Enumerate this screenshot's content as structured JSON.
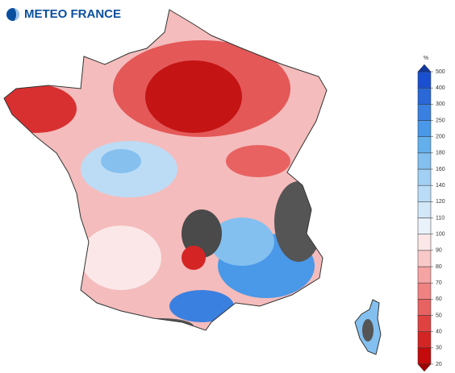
{
  "header": {
    "logo_text": "METEO FRANCE"
  },
  "legend": {
    "unit": "%",
    "ticks": [
      20,
      30,
      40,
      50,
      60,
      70,
      80,
      90,
      100,
      110,
      120,
      140,
      160,
      180,
      200,
      250,
      300,
      400,
      500
    ],
    "colors": [
      "#c40a0a",
      "#d42424",
      "#e04242",
      "#e86262",
      "#f08282",
      "#f5a3a3",
      "#f9c8c8",
      "#fbe7e7",
      "#e9f1fa",
      "#d2e7f8",
      "#badcf7",
      "#a2d0f4",
      "#83c0f0",
      "#63afec",
      "#4a98e8",
      "#3a80e0",
      "#2a68d8",
      "#1a50d0"
    ],
    "low_color": "#a00000",
    "high_color": "#10389e"
  }
}
